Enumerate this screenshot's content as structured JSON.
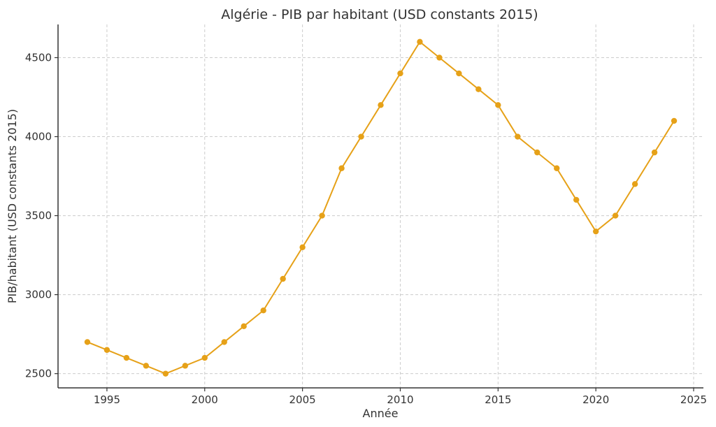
{
  "chart_data": {
    "type": "line",
    "title": "Algérie - PIB par habitant (USD constants 2015)",
    "xlabel": "Année",
    "ylabel": "PIB/habitant (USD constants 2015)",
    "xlim": [
      1992.5,
      2025.5
    ],
    "ylim": [
      2410,
      4710
    ],
    "x_ticks": [
      1995,
      2000,
      2005,
      2010,
      2015,
      2020,
      2025
    ],
    "y_ticks": [
      2500,
      3000,
      3500,
      4000,
      4500
    ],
    "grid": true,
    "color": "#E6A118",
    "series": [
      {
        "x": [
          1994,
          1995,
          1996,
          1997,
          1998,
          1999,
          2000,
          2001,
          2002,
          2003,
          2004,
          2005,
          2006,
          2007,
          2008,
          2009,
          2010,
          2011,
          2012,
          2013,
          2014,
          2015,
          2016,
          2017,
          2018,
          2019,
          2020,
          2021,
          2022,
          2023,
          2024
        ],
        "values": [
          2700,
          2650,
          2600,
          2550,
          2500,
          2550,
          2600,
          2700,
          2800,
          2900,
          3100,
          3300,
          3500,
          3800,
          4000,
          4200,
          4400,
          4600,
          4500,
          4400,
          4300,
          4200,
          4000,
          3900,
          3800,
          3600,
          3400,
          3500,
          3700,
          3900,
          4100
        ]
      }
    ]
  }
}
